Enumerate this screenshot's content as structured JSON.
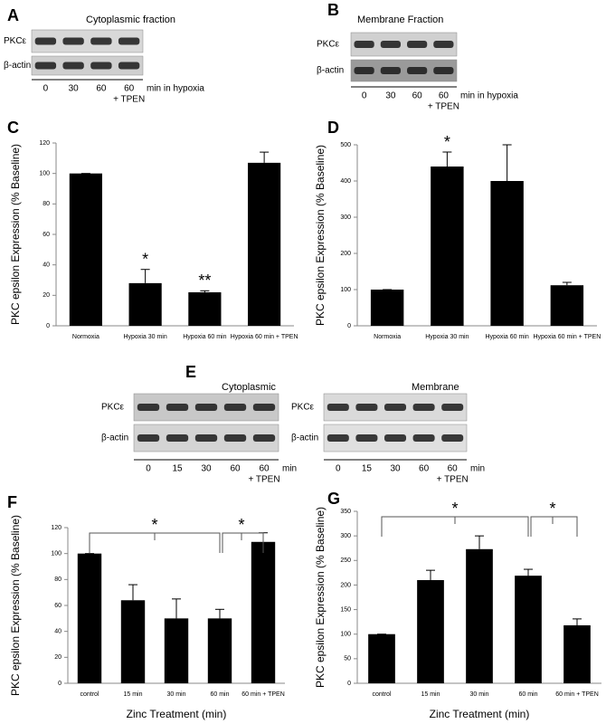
{
  "blots": [
    {
      "panel": "A",
      "title": "Cytoplasmic fraction",
      "rows": [
        "PKCε",
        "β-actin"
      ],
      "lanes": [
        "0",
        "30",
        "60",
        "60"
      ],
      "unit": "min in hypoxia",
      "note": "+ TPEN"
    },
    {
      "panel": "B",
      "title": "Membrane Fraction",
      "rows": [
        "PKCε",
        "β-actin"
      ],
      "lanes": [
        "0",
        "30",
        "60",
        "60"
      ],
      "unit": "min in hypoxia",
      "note": "+ TPEN"
    },
    {
      "panel": "E",
      "title": "Cytoplasmic",
      "rows": [
        "PKCε",
        "β-actin"
      ],
      "lanes": [
        "0",
        "15",
        "30",
        "60",
        "60"
      ],
      "unit": "min",
      "note": "+ TPEN"
    },
    {
      "title": "Membrane",
      "rows": [
        "PKCε",
        "β-actin"
      ],
      "lanes": [
        "0",
        "15",
        "30",
        "60",
        "60"
      ],
      "unit": "min",
      "note": "+ TPEN"
    }
  ],
  "chart_data": [
    {
      "type": "bar",
      "panel": "C",
      "ylabel": "PKC epsilon Expression (% Baseline)",
      "categories": [
        "Normoxia",
        "Hypoxia 30 min",
        "Hypoxia 60 min",
        "Hypoxia 60 min + TPEN"
      ],
      "series": [
        {
          "color": "#000000",
          "values": [
            100,
            28,
            22,
            107
          ],
          "errors": [
            0,
            9,
            1,
            7
          ],
          "significance": [
            null,
            "*",
            "**",
            null
          ]
        }
      ],
      "ylim": [
        0,
        120
      ],
      "yticks": [
        0,
        20,
        40,
        60,
        80,
        100,
        120
      ]
    },
    {
      "type": "bar",
      "panel": "D",
      "ylabel": "PKC epsilon Expression (% Baseline)",
      "categories": [
        "Normoxia",
        "Hypoxia 30 min",
        "Hypoxia 60 min",
        "Hypoxia 60 min + TPEN"
      ],
      "series": [
        {
          "color": "#000000",
          "values": [
            100,
            440,
            400,
            112
          ],
          "errors": [
            0,
            40,
            100,
            8
          ],
          "significance": [
            null,
            "*",
            null,
            null
          ]
        }
      ],
      "ylim": [
        0,
        500
      ],
      "yticks": [
        0,
        100,
        200,
        300,
        400,
        500
      ]
    },
    {
      "type": "bar",
      "panel": "F",
      "ylabel": "PKC epsilon Expression (% Baseline)",
      "xlabel": "Zinc Treatment (min)",
      "categories": [
        "control",
        "15 min",
        "30 min",
        "60 min",
        "60 min + TPEN"
      ],
      "series": [
        {
          "color": "#000000",
          "values": [
            100,
            64,
            50,
            50,
            109
          ],
          "errors": [
            0,
            12,
            15,
            7,
            7
          ]
        }
      ],
      "brackets": [
        {
          "label": "*",
          "from": "control",
          "to": "60 min"
        },
        {
          "label": "*",
          "from": "60 min",
          "to": "60 min + TPEN"
        }
      ],
      "ylim": [
        0,
        120
      ],
      "yticks": [
        0,
        20,
        40,
        60,
        80,
        100,
        120
      ]
    },
    {
      "type": "bar",
      "panel": "G",
      "ylabel": "PKC epsilon Expression (% Baseline)",
      "xlabel": "Zinc Treatment (min)",
      "categories": [
        "control",
        "15 min",
        "30 min",
        "60 min",
        "60 min + TPEN"
      ],
      "series": [
        {
          "color": "#000000",
          "values": [
            100,
            210,
            273,
            219,
            118
          ],
          "errors": [
            0,
            20,
            27,
            13,
            13
          ]
        }
      ],
      "brackets": [
        {
          "label": "*",
          "from": "control",
          "to": "60 min"
        },
        {
          "label": "*",
          "from": "60 min",
          "to": "60 min + TPEN"
        }
      ],
      "ylim": [
        0,
        350
      ],
      "yticks": [
        0,
        50,
        100,
        150,
        200,
        250,
        300,
        350
      ]
    }
  ]
}
